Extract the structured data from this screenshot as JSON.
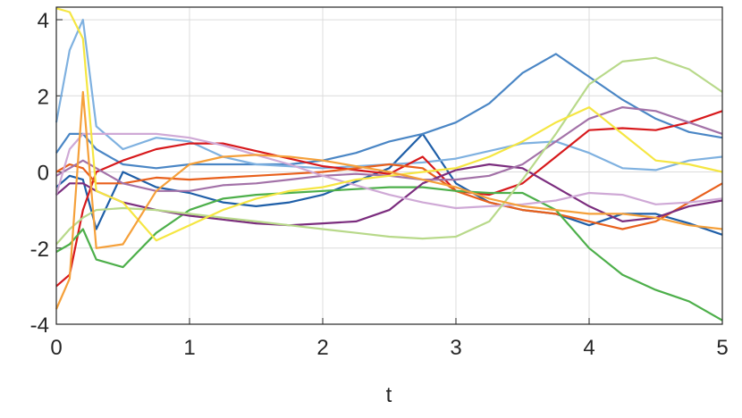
{
  "chart_data": {
    "type": "line",
    "xlabel": "t",
    "x": [
      0,
      0.1,
      0.2,
      0.3,
      0.5,
      0.75,
      1,
      1.25,
      1.5,
      1.75,
      2,
      2.25,
      2.5,
      2.75,
      3,
      3.25,
      3.5,
      3.75,
      4,
      4.25,
      4.5,
      4.75,
      5
    ],
    "xlim": [
      0,
      5
    ],
    "xticks": [
      0,
      1,
      2,
      3,
      4,
      5
    ],
    "ylim": [
      -4,
      4.33
    ],
    "yticks": [
      -4,
      -2,
      0,
      2,
      4
    ],
    "grid": true,
    "series": [
      {
        "color": "#1f5fa8",
        "values": [
          -0.4,
          -0.1,
          -0.2,
          -1.5,
          0.0,
          -0.4,
          -0.55,
          -0.8,
          -0.9,
          -0.8,
          -0.6,
          -0.25,
          0.1,
          1.0,
          -0.3,
          -0.8,
          -1.0,
          -1.1,
          -1.4,
          -1.1,
          -1.1,
          -1.35,
          -1.65
        ]
      },
      {
        "color": "#4a86c5",
        "values": [
          0.5,
          1.0,
          1.0,
          0.6,
          0.2,
          0.1,
          0.2,
          0.2,
          0.2,
          0.2,
          0.3,
          0.5,
          0.8,
          1.0,
          1.3,
          1.8,
          2.6,
          3.1,
          2.5,
          1.9,
          1.4,
          1.05,
          0.9
        ]
      },
      {
        "color": "#7fb1e0",
        "values": [
          1.3,
          3.2,
          4.0,
          1.2,
          0.6,
          0.9,
          0.8,
          0.4,
          0.2,
          0.15,
          0.1,
          0.15,
          0.2,
          0.25,
          0.35,
          0.55,
          0.75,
          0.8,
          0.5,
          0.1,
          0.05,
          0.3,
          0.4
        ]
      },
      {
        "color": "#d7191c",
        "values": [
          -3.0,
          -2.7,
          -1.0,
          0.0,
          0.3,
          0.6,
          0.75,
          0.75,
          0.55,
          0.35,
          0.15,
          0.05,
          -0.05,
          0.4,
          -0.5,
          -0.6,
          -0.3,
          0.4,
          1.1,
          1.15,
          1.1,
          1.3,
          1.6
        ]
      },
      {
        "color": "#e8601c",
        "values": [
          0.0,
          0.2,
          0.1,
          -0.3,
          -0.3,
          -0.15,
          -0.2,
          -0.15,
          -0.1,
          -0.05,
          0.0,
          0.1,
          0.2,
          0.1,
          -0.5,
          -0.8,
          -1.0,
          -1.1,
          -1.3,
          -1.5,
          -1.3,
          -0.8,
          -0.3
        ]
      },
      {
        "color": "#4daf4a",
        "values": [
          -2.1,
          -1.9,
          -1.5,
          -2.3,
          -2.5,
          -1.6,
          -1.0,
          -0.7,
          -0.6,
          -0.55,
          -0.5,
          -0.45,
          -0.4,
          -0.4,
          -0.5,
          -0.55,
          -0.55,
          -1.0,
          -2.0,
          -2.7,
          -3.1,
          -3.4,
          -3.9
        ]
      },
      {
        "color": "#7b2d7e",
        "values": [
          -0.6,
          -0.3,
          -0.3,
          -0.5,
          -0.8,
          -1.0,
          -1.15,
          -1.25,
          -1.35,
          -1.4,
          -1.35,
          -1.3,
          -1.0,
          -0.3,
          0.05,
          0.2,
          0.1,
          -0.4,
          -0.9,
          -1.3,
          -1.2,
          -0.9,
          -0.75
        ]
      },
      {
        "color": "#a372a8",
        "values": [
          -0.1,
          0.1,
          0.3,
          0.1,
          -0.3,
          -0.5,
          -0.5,
          -0.35,
          -0.3,
          -0.2,
          -0.1,
          -0.05,
          -0.1,
          -0.2,
          -0.2,
          -0.1,
          0.2,
          0.8,
          1.4,
          1.7,
          1.6,
          1.3,
          1.0
        ]
      },
      {
        "color": "#cfa9d6",
        "values": [
          -0.6,
          0.6,
          1.0,
          1.0,
          1.0,
          1.0,
          0.9,
          0.7,
          0.45,
          0.2,
          -0.1,
          -0.35,
          -0.6,
          -0.8,
          -0.95,
          -0.9,
          -0.85,
          -0.75,
          -0.55,
          -0.6,
          -0.85,
          -0.8,
          -0.7
        ]
      },
      {
        "color": "#b8d98a",
        "values": [
          -1.9,
          -1.5,
          -1.2,
          -1.0,
          -0.95,
          -1.0,
          -1.1,
          -1.2,
          -1.3,
          -1.4,
          -1.5,
          -1.6,
          -1.7,
          -1.75,
          -1.7,
          -1.3,
          -0.2,
          1.0,
          2.3,
          2.9,
          3.0,
          2.7,
          2.1
        ]
      },
      {
        "color": "#f5e642",
        "values": [
          4.3,
          4.2,
          3.5,
          -0.5,
          -0.8,
          -1.8,
          -1.4,
          -1.0,
          -0.7,
          -0.5,
          -0.4,
          -0.2,
          -0.1,
          0.0,
          0.1,
          0.4,
          0.8,
          1.3,
          1.7,
          1.0,
          0.3,
          0.2,
          0.0
        ]
      },
      {
        "color": "#f5a03a",
        "values": [
          -3.6,
          -2.8,
          2.1,
          -2.0,
          -1.9,
          -0.5,
          0.2,
          0.4,
          0.45,
          0.4,
          0.3,
          0.15,
          0.0,
          -0.2,
          -0.4,
          -0.7,
          -0.9,
          -1.0,
          -1.1,
          -1.1,
          -1.2,
          -1.4,
          -1.5
        ]
      }
    ]
  }
}
